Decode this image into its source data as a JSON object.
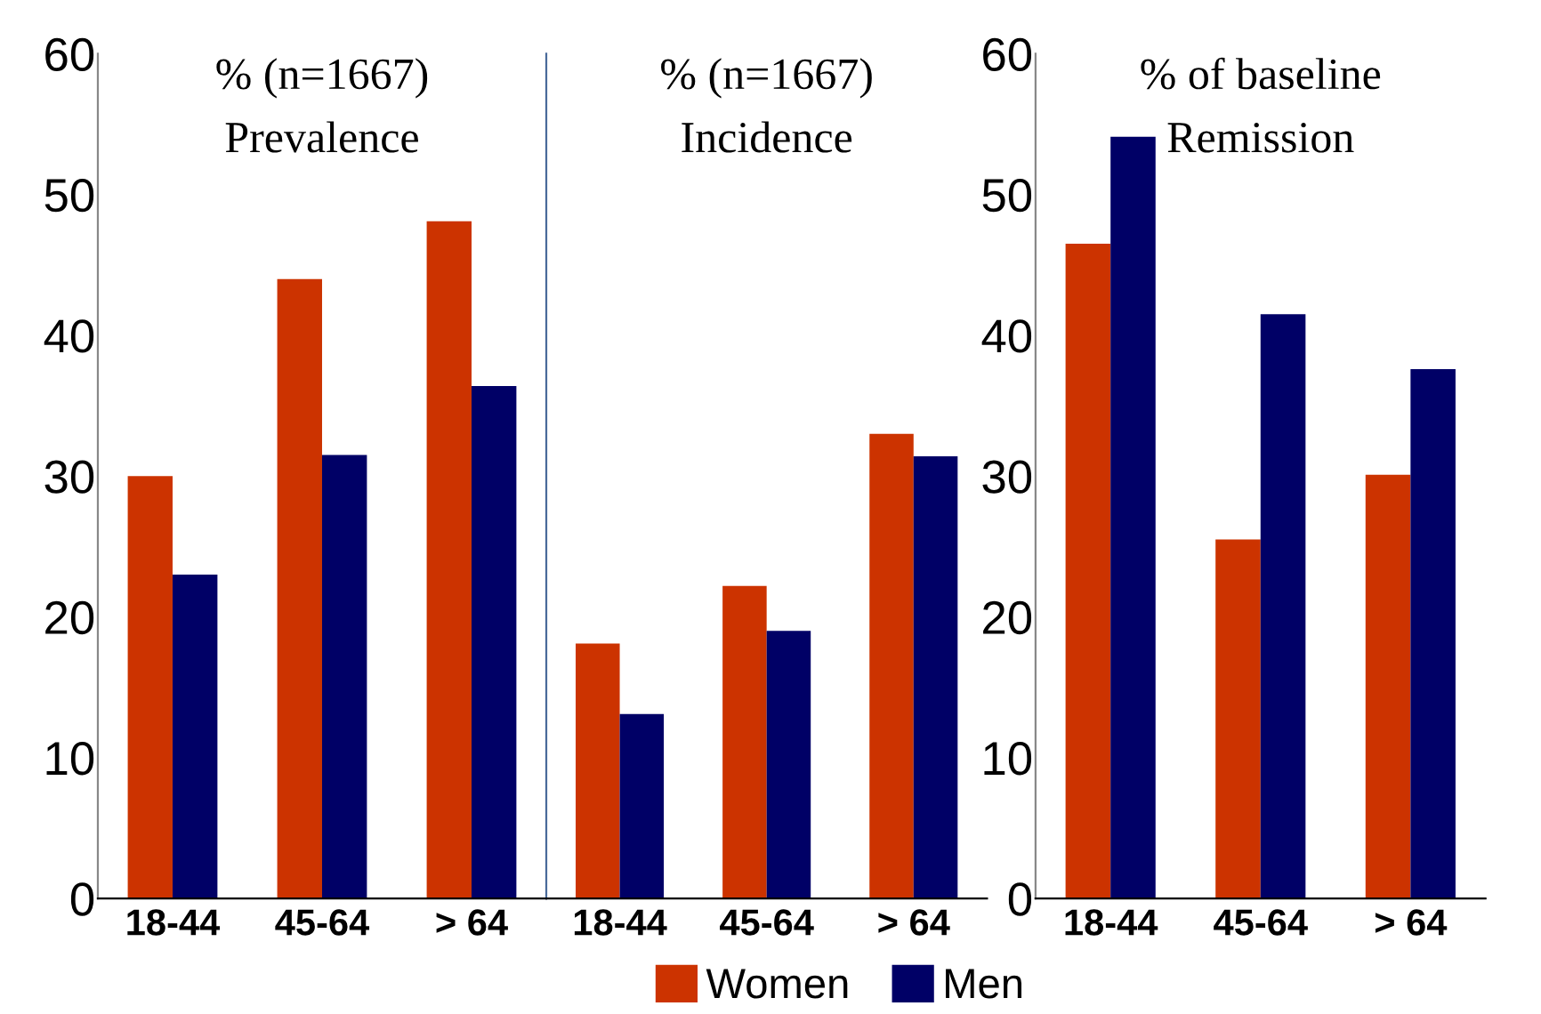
{
  "chart_data": [
    {
      "type": "bar",
      "title": "Prevalence",
      "subtitle": "% (n=1667)",
      "categories": [
        "18-44",
        "45-64",
        "> 64"
      ],
      "series": [
        {
          "name": "Women",
          "color": "#cc3300",
          "values": [
            30.0,
            44.0,
            48.1
          ]
        },
        {
          "name": "Men",
          "color": "#000066",
          "values": [
            23.0,
            31.5,
            36.4
          ]
        }
      ],
      "ylim": [
        0,
        60
      ],
      "yticks": [
        0,
        10,
        20,
        30,
        40,
        50,
        60
      ],
      "grid": false,
      "legend": "bottom"
    },
    {
      "type": "bar",
      "title": "Incidence",
      "subtitle": "% (n=1667)",
      "categories": [
        "18-44",
        "45-64",
        "> 64"
      ],
      "series": [
        {
          "color": "#cc3300",
          "values": [
            18.1,
            22.2,
            33.0
          ]
        },
        {
          "color": "#000066",
          "values": [
            13.1,
            19.0,
            31.4
          ]
        }
      ],
      "ylim": [
        0,
        60
      ],
      "tick_labels": "x",
      "grid": false
    },
    {
      "type": "bar",
      "title": "Remission",
      "subtitle": "% of baseline",
      "categories": [
        "18-44",
        "45-64",
        "> 64"
      ],
      "series": [
        {
          "color": "#cc3300",
          "values": [
            46.5,
            25.5,
            30.1
          ]
        },
        {
          "color": "#000066",
          "values": [
            54.1,
            41.5,
            37.6
          ]
        }
      ],
      "ylim": [
        0,
        60
      ],
      "yticks": [
        0,
        10,
        20,
        30,
        40,
        50,
        60
      ],
      "grid": false
    }
  ]
}
